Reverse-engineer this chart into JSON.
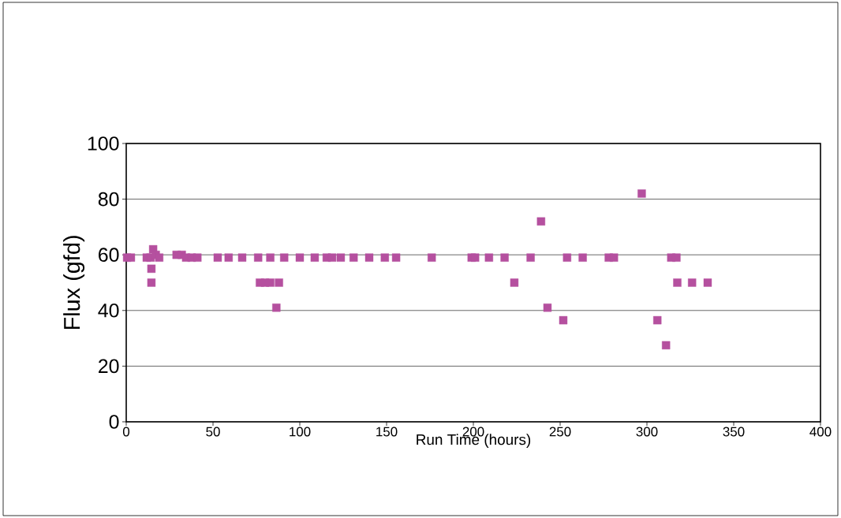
{
  "chart_data": {
    "type": "scatter",
    "xlabel": "Run Time (hours)",
    "ylabel": "Flux (gfd)",
    "xlim": [
      0,
      400
    ],
    "ylim": [
      0,
      100
    ],
    "xticks": [
      0,
      50,
      100,
      150,
      200,
      250,
      300,
      350,
      400
    ],
    "yticks": [
      0,
      20,
      40,
      60,
      80,
      100
    ],
    "grid": "y",
    "marker": "square",
    "series": [
      {
        "color": "#b5509f",
        "x": [
          0.5,
          2.7,
          11.8,
          14,
          15.5,
          17,
          19,
          14.5,
          14.5,
          29,
          32,
          34.5,
          37.7,
          41,
          52.7,
          59,
          66.8,
          76,
          77,
          80,
          83,
          88,
          86.5,
          83,
          91,
          100,
          108.6,
          115.5,
          118.6,
          123.6,
          131,
          140,
          149,
          155.5,
          176,
          199,
          201,
          209,
          218,
          223.6,
          233,
          239,
          242.7,
          251.8,
          254,
          263,
          278,
          281,
          297,
          306,
          311,
          314,
          317,
          317.5,
          326,
          335
        ],
        "values": [
          59,
          59,
          59,
          59,
          62,
          60,
          59,
          55,
          50,
          60,
          60,
          59,
          59,
          59,
          59,
          59,
          59,
          59,
          50,
          50,
          50,
          50,
          41,
          59,
          59,
          59,
          59,
          59,
          59,
          59,
          59,
          59,
          59,
          59,
          59,
          59,
          59,
          59,
          59,
          50,
          59,
          72,
          41,
          36.5,
          59,
          59,
          59,
          59,
          82,
          36.5,
          27.5,
          59,
          59,
          50,
          50,
          50
        ]
      }
    ]
  }
}
